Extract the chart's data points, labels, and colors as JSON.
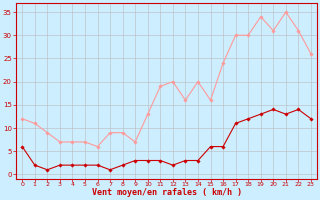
{
  "x": [
    0,
    1,
    2,
    3,
    4,
    5,
    6,
    7,
    8,
    9,
    10,
    11,
    12,
    13,
    14,
    15,
    16,
    17,
    18,
    19,
    20,
    21,
    22,
    23
  ],
  "wind_avg": [
    6,
    2,
    1,
    2,
    2,
    2,
    2,
    1,
    2,
    3,
    3,
    3,
    2,
    3,
    3,
    6,
    6,
    11,
    12,
    13,
    14,
    13,
    14,
    12
  ],
  "wind_gust": [
    12,
    11,
    9,
    7,
    7,
    7,
    6,
    9,
    9,
    7,
    13,
    19,
    20,
    16,
    20,
    16,
    24,
    30,
    30,
    34,
    31,
    35,
    31,
    26
  ],
  "bg_color": "#cceeff",
  "grid_color": "#bbbbbb",
  "line_color_avg": "#cc0000",
  "line_color_gust": "#ff9999",
  "xlabel": "Vent moyen/en rafales ( km/h )",
  "xlabel_color": "#cc0000",
  "yticks": [
    0,
    5,
    10,
    15,
    20,
    25,
    30,
    35
  ],
  "ylim": [
    -1,
    37
  ],
  "xlim": [
    -0.5,
    23.5
  ],
  "figsize": [
    3.2,
    2.0
  ],
  "dpi": 100
}
